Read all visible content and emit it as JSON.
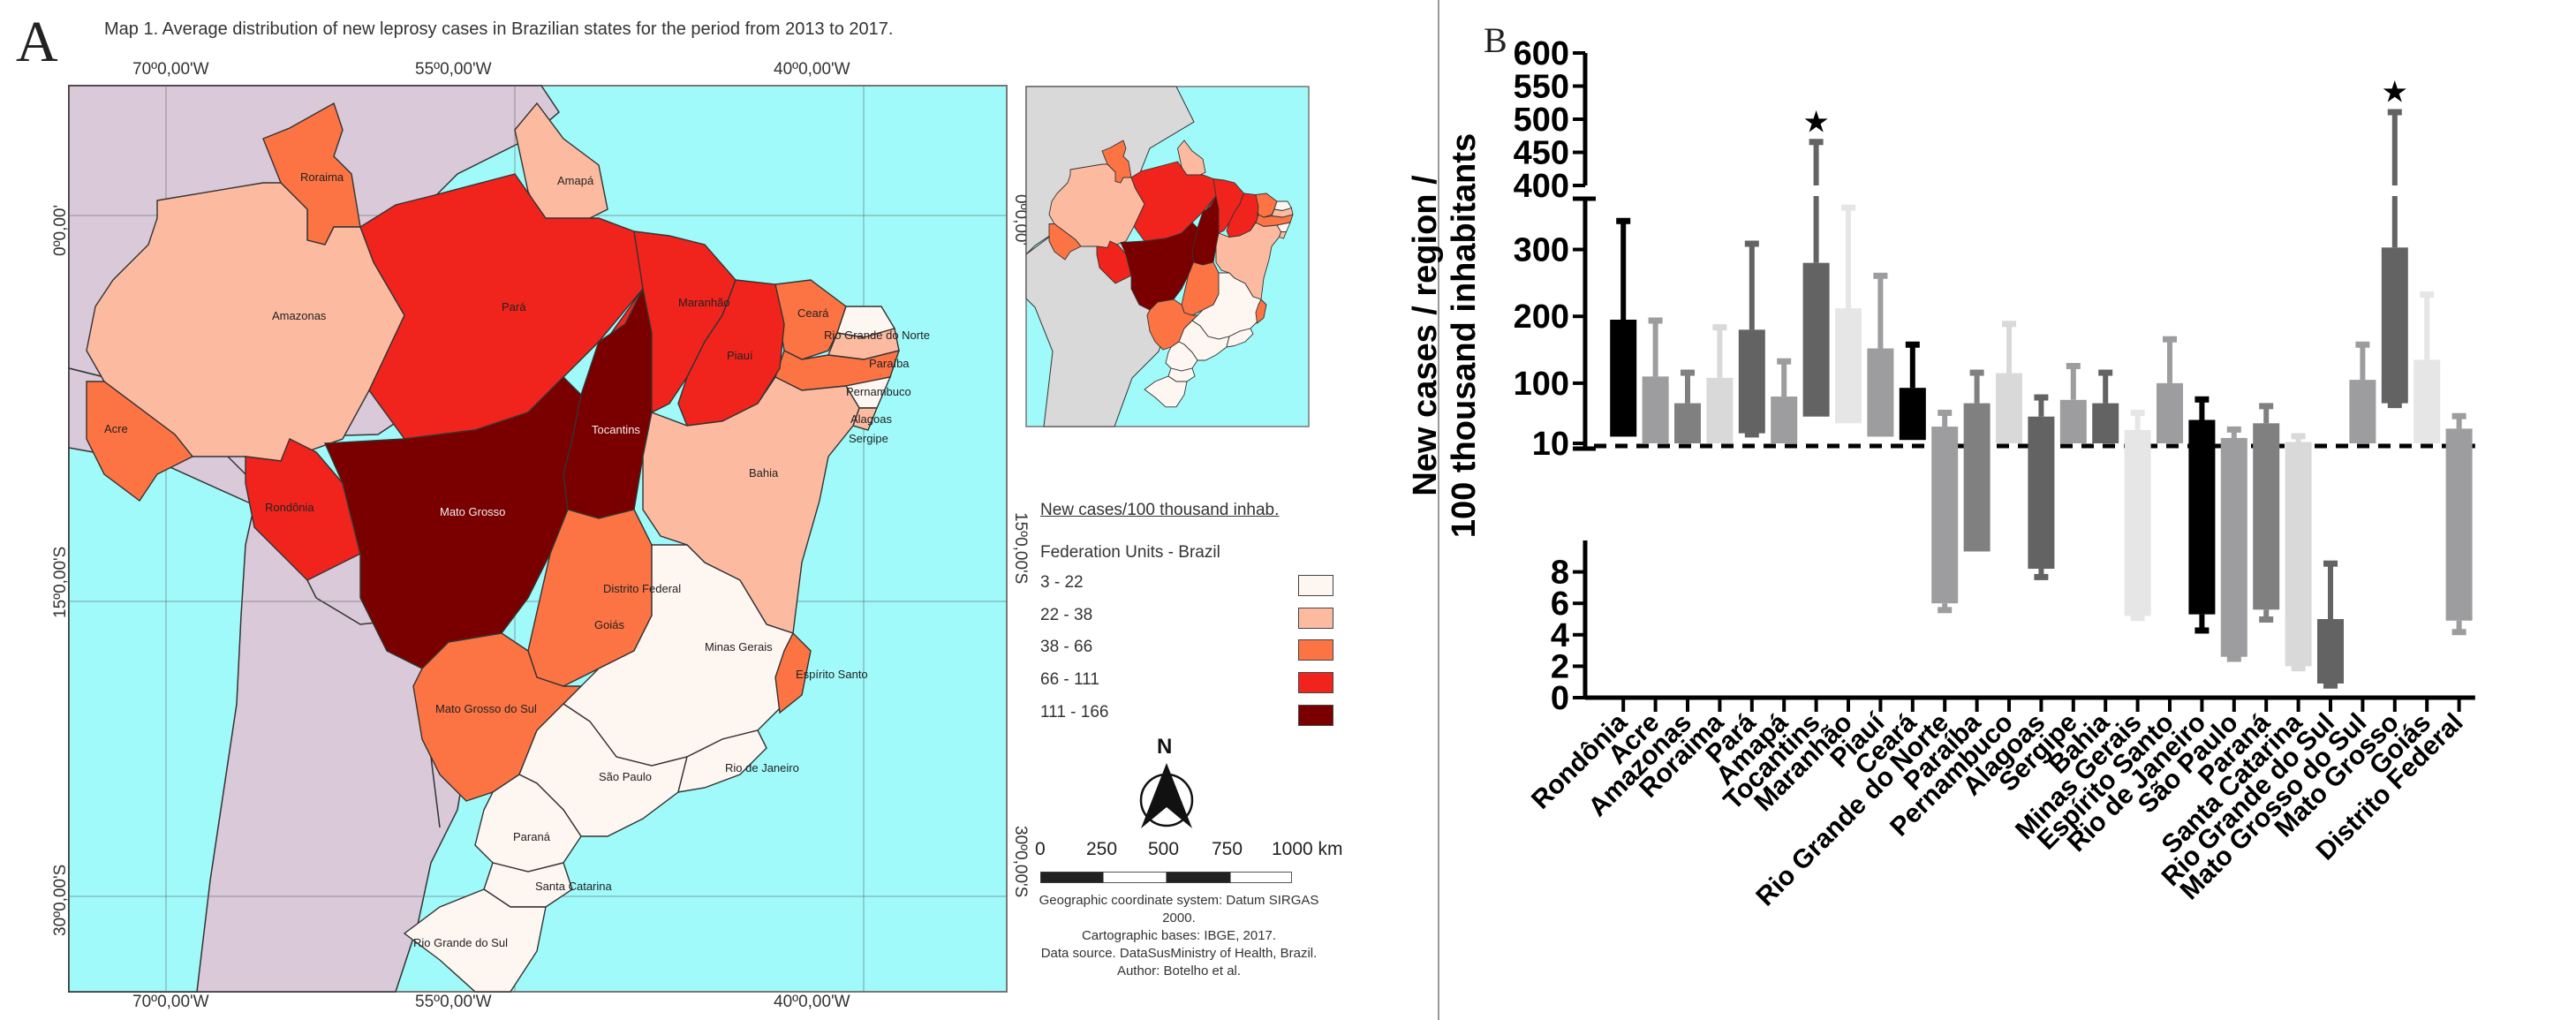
{
  "panel_a": {
    "letter": "A",
    "title": "Map 1. Average distribution of new leprosy cases in Brazilian states for the period from 2013 to 2017.",
    "longitude_labels": [
      "70º0,00'W",
      "55º0,00'W",
      "40º0,00'W"
    ],
    "latitude_labels": [
      "0º0,00'",
      "15º0,00'S",
      "30º0,00'S"
    ],
    "legend": {
      "title": "New cases/100 thousand inhab.",
      "subtitle": "Federation Units - Brazil",
      "classes": [
        {
          "label": "3 - 22",
          "color": "#fdf6f1"
        },
        {
          "label": "22 - 38",
          "color": "#fcbba1"
        },
        {
          "label": "38 - 66",
          "color": "#fc7443"
        },
        {
          "label": "66 - 111",
          "color": "#f0241c"
        },
        {
          "label": "111 - 166",
          "color": "#7a0000"
        }
      ]
    },
    "north_label": "N",
    "scale_bar": {
      "labels": [
        "0",
        "250",
        "500",
        "750",
        "1000 km"
      ]
    },
    "credits": [
      "Geographic coordinate system: Datum SIRGAS 2000.",
      "Cartographic bases: IBGE, 2017.",
      "Data source. DataSusMinistry of Health, Brazil.",
      "Author: Botelho et al."
    ],
    "colors": {
      "ocean": "#a0fafa",
      "neighbors": "#d9c9d9",
      "inset_neighbors": "#d9d9d9"
    },
    "states": [
      {
        "name": "Roraima",
        "class": 2
      },
      {
        "name": "Amapá",
        "class": 1
      },
      {
        "name": "Amazonas",
        "class": 1
      },
      {
        "name": "Pará",
        "class": 3
      },
      {
        "name": "Maranhão",
        "class": 3
      },
      {
        "name": "Ceará",
        "class": 2
      },
      {
        "name": "Rio Grande do Norte",
        "class": 0
      },
      {
        "name": "Paraíba",
        "class": 1
      },
      {
        "name": "Pernambuco",
        "class": 2
      },
      {
        "name": "Alagoas",
        "class": 0
      },
      {
        "name": "Sergipe",
        "class": 1
      },
      {
        "name": "Piauí",
        "class": 3
      },
      {
        "name": "Acre",
        "class": 2
      },
      {
        "name": "Rondônia",
        "class": 3
      },
      {
        "name": "Tocantins",
        "class": 4
      },
      {
        "name": "Mato Grosso",
        "class": 4
      },
      {
        "name": "Bahia",
        "class": 1
      },
      {
        "name": "Distrito Federal",
        "class": 0
      },
      {
        "name": "Goiás",
        "class": 2
      },
      {
        "name": "Minas Gerais",
        "class": 0
      },
      {
        "name": "Espírito Santo",
        "class": 2
      },
      {
        "name": "Mato Grosso do Sul",
        "class": 2
      },
      {
        "name": "São Paulo",
        "class": 0
      },
      {
        "name": "Rio de Janeiro",
        "class": 0
      },
      {
        "name": "Paraná",
        "class": 0
      },
      {
        "name": "Santa Catarina",
        "class": 0
      },
      {
        "name": "Rio Grande do Sul",
        "class": 0
      }
    ]
  },
  "panel_b": {
    "letter": "B"
  },
  "chart_data": {
    "type": "bar",
    "subtype": "floating range bars (min–max) with error whiskers, broken y-axis",
    "title": "",
    "xlabel": "",
    "ylabel": "New cases / region / 100 thousand inhabitants",
    "ylabel_lines": [
      "New cases / region /",
      "100 thousand inhabitants"
    ],
    "y_axis_segments": [
      {
        "range": [
          400,
          600
        ],
        "ticks": [
          400,
          450,
          500,
          550,
          600
        ]
      },
      {
        "range": [
          10,
          380
        ],
        "ticks": [
          100,
          200,
          300
        ]
      },
      {
        "range": [
          0,
          10
        ],
        "ticks": [
          0,
          2,
          4,
          6,
          8,
          10
        ]
      }
    ],
    "reference_line": {
      "style": "dashed",
      "value": 10
    },
    "categories": [
      "Rondônia",
      "Acre",
      "Amazonas",
      "Roraima",
      "Pará",
      "Amapá",
      "Tocantins",
      "Maranhão",
      "Piauí",
      "Ceará",
      "Rio Grande do Norte",
      "Paraíba",
      "Pernambuco",
      "Alagoas",
      "Sergipe",
      "Bahia",
      "Minas Gerais",
      "Espírito Santo",
      "Rio de Janeiro",
      "São Paulo",
      "Paraná",
      "Santa Catarina",
      "Rio Grande do Sul",
      "Mato Grosso do Sul",
      "Mato Grosso",
      "Goiás",
      "Distrito Federal"
    ],
    "bar_colors": [
      "#000000",
      "#9d9d9f",
      "#808080",
      "#d9d9d9",
      "#636363",
      "#9d9d9f",
      "#636363",
      "#e6e6e6",
      "#9d9d9f",
      "#000000",
      "#9d9d9f",
      "#808080",
      "#d9d9d9",
      "#636363",
      "#9d9d9f",
      "#636363",
      "#e6e6e6",
      "#9d9d9f",
      "#000000",
      "#9d9d9f",
      "#808080",
      "#d9d9d9",
      "#636363",
      "#9d9d9f",
      "#636363",
      "#e6e6e6",
      "#9d9d9f"
    ],
    "series": [
      {
        "name": "bar_low",
        "values": [
          20,
          10,
          10,
          10,
          25,
          10,
          50,
          40,
          20,
          15,
          6,
          9.3,
          10,
          8.2,
          10,
          10,
          5.2,
          10,
          5.3,
          2.6,
          5.6,
          2.0,
          0.9,
          10,
          70,
          10,
          4.9
        ]
      },
      {
        "name": "bar_high",
        "values": [
          195,
          110,
          70,
          108,
          180,
          80,
          280,
          212,
          152,
          93,
          35,
          70,
          115,
          50,
          75,
          70,
          30,
          100,
          45,
          18,
          40,
          12,
          5.0,
          105,
          303,
          135,
          32
        ]
      },
      {
        "name": "whisker_high",
        "values": [
          342,
          193,
          115,
          183,
          308,
          132,
          465,
          362,
          260,
          157,
          55,
          115,
          188,
          78,
          125,
          115,
          55,
          165,
          75,
          30,
          65,
          20,
          8.5,
          157,
          510,
          232,
          50
        ]
      },
      {
        "name": "whisker_low",
        "values": [
          20,
          10,
          10,
          10,
          24,
          10,
          50,
          40,
          20,
          15,
          5.6,
          9.3,
          10,
          7.7,
          10,
          10,
          5.1,
          10,
          4.3,
          2.5,
          5.0,
          1.9,
          0.8,
          10,
          68,
          10,
          4.2
        ]
      }
    ],
    "annotations": [
      {
        "category": "Tocantins",
        "symbol": "★"
      },
      {
        "category": "Mato Grosso",
        "symbol": "★"
      }
    ],
    "grid": false,
    "legend": "none"
  }
}
